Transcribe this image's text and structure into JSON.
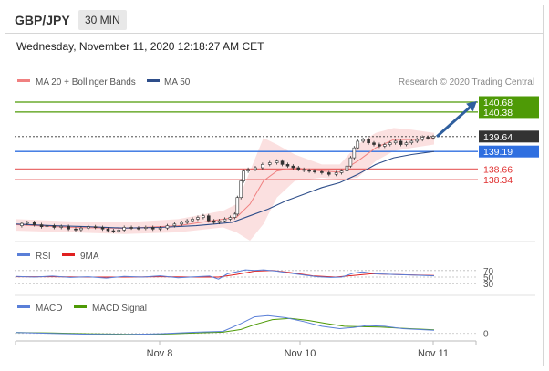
{
  "header": {
    "pair": "GBP/JPY",
    "timeframe": "30 MIN"
  },
  "timestamp": "Wednesday, November 11, 2020 12:18:27 AM CET",
  "chart_data": [
    {
      "type": "line",
      "title": "GBP/JPY",
      "legend": [
        {
          "name": "MA 20 + Bollinger Bands",
          "color": "#f08080"
        },
        {
          "name": "MA 50",
          "color": "#2e4e8a"
        }
      ],
      "credit": "Research © 2020 Trading Central",
      "x_ticks": [
        "Nov 8",
        "Nov 10",
        "Nov 11"
      ],
      "y_range": [
        136.5,
        140.9
      ],
      "price_path": [
        [
          0,
          136.95
        ],
        [
          6,
          137.02
        ],
        [
          12,
          137.05
        ],
        [
          20,
          136.98
        ],
        [
          28,
          136.92
        ],
        [
          34,
          136.95
        ],
        [
          42,
          136.9
        ],
        [
          50,
          136.93
        ],
        [
          58,
          136.85
        ],
        [
          66,
          136.83
        ],
        [
          72,
          136.88
        ],
        [
          80,
          136.92
        ],
        [
          88,
          136.9
        ],
        [
          96,
          136.85
        ],
        [
          102,
          136.8
        ],
        [
          108,
          136.78
        ],
        [
          114,
          136.82
        ],
        [
          120,
          136.9
        ],
        [
          128,
          136.88
        ],
        [
          136,
          136.87
        ],
        [
          144,
          136.9
        ],
        [
          152,
          136.85
        ],
        [
          160,
          136.88
        ],
        [
          168,
          136.95
        ],
        [
          176,
          137.0
        ],
        [
          184,
          137.05
        ],
        [
          190,
          137.1
        ],
        [
          196,
          137.15
        ],
        [
          202,
          137.2
        ],
        [
          208,
          137.25
        ],
        [
          214,
          137.1
        ],
        [
          220,
          137.05
        ],
        [
          226,
          137.1
        ],
        [
          232,
          137.15
        ],
        [
          238,
          137.2
        ],
        [
          243,
          137.3
        ],
        [
          246,
          137.8
        ],
        [
          250,
          138.3
        ],
        [
          253,
          138.6
        ],
        [
          258,
          138.65
        ],
        [
          266,
          138.7
        ],
        [
          274,
          138.8
        ],
        [
          282,
          138.85
        ],
        [
          290,
          138.9
        ],
        [
          296,
          138.8
        ],
        [
          302,
          138.75
        ],
        [
          308,
          138.7
        ],
        [
          314,
          138.65
        ],
        [
          320,
          138.62
        ],
        [
          326,
          138.6
        ],
        [
          332,
          138.58
        ],
        [
          340,
          138.55
        ],
        [
          348,
          138.5
        ],
        [
          356,
          138.55
        ],
        [
          362,
          138.6
        ],
        [
          368,
          138.75
        ],
        [
          372,
          139.0
        ],
        [
          376,
          139.3
        ],
        [
          380,
          139.5
        ],
        [
          386,
          139.55
        ],
        [
          392,
          139.45
        ],
        [
          398,
          139.4
        ],
        [
          404,
          139.35
        ],
        [
          410,
          139.4
        ],
        [
          416,
          139.45
        ],
        [
          422,
          139.5
        ],
        [
          428,
          139.4
        ],
        [
          434,
          139.45
        ],
        [
          440,
          139.5
        ],
        [
          446,
          139.55
        ],
        [
          452,
          139.62
        ],
        [
          458,
          139.6
        ],
        [
          464,
          139.64
        ]
      ],
      "ma50_path": [
        [
          0,
          137.0
        ],
        [
          40,
          136.95
        ],
        [
          80,
          136.92
        ],
        [
          120,
          136.88
        ],
        [
          160,
          136.9
        ],
        [
          200,
          136.95
        ],
        [
          220,
          137.0
        ],
        [
          240,
          137.05
        ],
        [
          260,
          137.25
        ],
        [
          280,
          137.45
        ],
        [
          300,
          137.7
        ],
        [
          320,
          137.9
        ],
        [
          340,
          138.1
        ],
        [
          360,
          138.25
        ],
        [
          380,
          138.5
        ],
        [
          400,
          138.8
        ],
        [
          420,
          139.0
        ],
        [
          440,
          139.1
        ],
        [
          465,
          139.19
        ]
      ],
      "bb_upper_path": [
        [
          0,
          137.15
        ],
        [
          60,
          137.08
        ],
        [
          120,
          137.05
        ],
        [
          180,
          137.15
        ],
        [
          230,
          137.4
        ],
        [
          245,
          137.6
        ],
        [
          260,
          138.6
        ],
        [
          275,
          139.6
        ],
        [
          290,
          139.4
        ],
        [
          310,
          139.1
        ],
        [
          340,
          138.8
        ],
        [
          360,
          138.8
        ],
        [
          380,
          139.4
        ],
        [
          400,
          139.75
        ],
        [
          420,
          139.9
        ],
        [
          440,
          139.85
        ],
        [
          465,
          139.75
        ]
      ],
      "bb_lower_path": [
        [
          0,
          136.8
        ],
        [
          60,
          136.75
        ],
        [
          120,
          136.7
        ],
        [
          180,
          136.75
        ],
        [
          230,
          136.9
        ],
        [
          245,
          136.75
        ],
        [
          260,
          136.5
        ],
        [
          275,
          137.0
        ],
        [
          290,
          137.8
        ],
        [
          310,
          138.3
        ],
        [
          340,
          138.4
        ],
        [
          360,
          138.35
        ],
        [
          380,
          138.4
        ],
        [
          400,
          138.9
        ],
        [
          420,
          139.2
        ],
        [
          440,
          139.3
        ],
        [
          465,
          139.4
        ]
      ],
      "ma20_path": [
        [
          0,
          136.98
        ],
        [
          60,
          136.9
        ],
        [
          120,
          136.87
        ],
        [
          180,
          136.95
        ],
        [
          230,
          137.15
        ],
        [
          245,
          137.2
        ],
        [
          260,
          137.6
        ],
        [
          275,
          138.3
        ],
        [
          290,
          138.6
        ],
        [
          310,
          138.7
        ],
        [
          340,
          138.6
        ],
        [
          360,
          138.57
        ],
        [
          380,
          138.9
        ],
        [
          400,
          139.3
        ],
        [
          420,
          139.55
        ],
        [
          440,
          139.55
        ],
        [
          465,
          139.58
        ]
      ],
      "levels": [
        {
          "label": "140.68",
          "value": 140.68,
          "color": "#4e9a06"
        },
        {
          "label": "140.38",
          "value": 140.38,
          "color": "#4e9a06"
        },
        {
          "label": "139.64",
          "value": 139.64,
          "color": "#333333"
        },
        {
          "label": "139.19",
          "value": 139.19,
          "color": "#2f6fe0"
        },
        {
          "label": "138.66",
          "value": 138.66,
          "color": "#e03030"
        },
        {
          "label": "138.34",
          "value": 138.34,
          "color": "#e03030"
        }
      ],
      "target_arrow": {
        "from": [
          468,
          139.64
        ],
        "to": [
          508,
          140.6
        ]
      }
    },
    {
      "type": "line",
      "legend": [
        {
          "name": "RSI",
          "color": "#5a7fd8"
        },
        {
          "name": "9MA",
          "color": "#e02020"
        }
      ],
      "y_ticks": [
        "70",
        "50",
        "30"
      ],
      "y_range": [
        0,
        100
      ],
      "rsi": [
        [
          0,
          52
        ],
        [
          20,
          50
        ],
        [
          40,
          53
        ],
        [
          60,
          49
        ],
        [
          80,
          51
        ],
        [
          100,
          47
        ],
        [
          120,
          52
        ],
        [
          140,
          50
        ],
        [
          160,
          54
        ],
        [
          180,
          48
        ],
        [
          200,
          51
        ],
        [
          215,
          53
        ],
        [
          225,
          44
        ],
        [
          235,
          60
        ],
        [
          245,
          66
        ],
        [
          255,
          72
        ],
        [
          265,
          70
        ],
        [
          275,
          72
        ],
        [
          290,
          68
        ],
        [
          305,
          62
        ],
        [
          320,
          56
        ],
        [
          335,
          51
        ],
        [
          350,
          49
        ],
        [
          362,
          50
        ],
        [
          375,
          62
        ],
        [
          385,
          66
        ],
        [
          400,
          60
        ],
        [
          420,
          58
        ],
        [
          440,
          56
        ],
        [
          465,
          54
        ]
      ],
      "ma9": [
        [
          0,
          51
        ],
        [
          40,
          51
        ],
        [
          80,
          50
        ],
        [
          120,
          50
        ],
        [
          160,
          51
        ],
        [
          200,
          50
        ],
        [
          225,
          50
        ],
        [
          245,
          58
        ],
        [
          265,
          68
        ],
        [
          285,
          70
        ],
        [
          305,
          64
        ],
        [
          330,
          54
        ],
        [
          355,
          50
        ],
        [
          375,
          55
        ],
        [
          395,
          60
        ],
        [
          420,
          58
        ],
        [
          445,
          56
        ],
        [
          465,
          55
        ]
      ]
    },
    {
      "type": "line",
      "legend": [
        {
          "name": "MACD",
          "color": "#5a7fd8"
        },
        {
          "name": "MACD Signal",
          "color": "#4e9a06"
        }
      ],
      "y_ticks": [
        "0"
      ],
      "y_range": [
        -0.1,
        0.55
      ],
      "macd": [
        [
          0,
          0.02
        ],
        [
          40,
          0.0
        ],
        [
          80,
          -0.02
        ],
        [
          120,
          -0.03
        ],
        [
          160,
          -0.01
        ],
        [
          200,
          0.03
        ],
        [
          230,
          0.05
        ],
        [
          250,
          0.25
        ],
        [
          265,
          0.42
        ],
        [
          280,
          0.45
        ],
        [
          300,
          0.4
        ],
        [
          320,
          0.3
        ],
        [
          340,
          0.18
        ],
        [
          360,
          0.12
        ],
        [
          375,
          0.15
        ],
        [
          390,
          0.2
        ],
        [
          410,
          0.18
        ],
        [
          430,
          0.12
        ],
        [
          465,
          0.08
        ]
      ],
      "signal": [
        [
          0,
          0.02
        ],
        [
          40,
          0.01
        ],
        [
          80,
          -0.01
        ],
        [
          120,
          -0.02
        ],
        [
          160,
          -0.02
        ],
        [
          200,
          0.01
        ],
        [
          230,
          0.03
        ],
        [
          250,
          0.1
        ],
        [
          265,
          0.22
        ],
        [
          285,
          0.35
        ],
        [
          305,
          0.38
        ],
        [
          325,
          0.33
        ],
        [
          345,
          0.25
        ],
        [
          365,
          0.18
        ],
        [
          385,
          0.17
        ],
        [
          405,
          0.16
        ],
        [
          430,
          0.13
        ],
        [
          465,
          0.09
        ]
      ]
    }
  ]
}
